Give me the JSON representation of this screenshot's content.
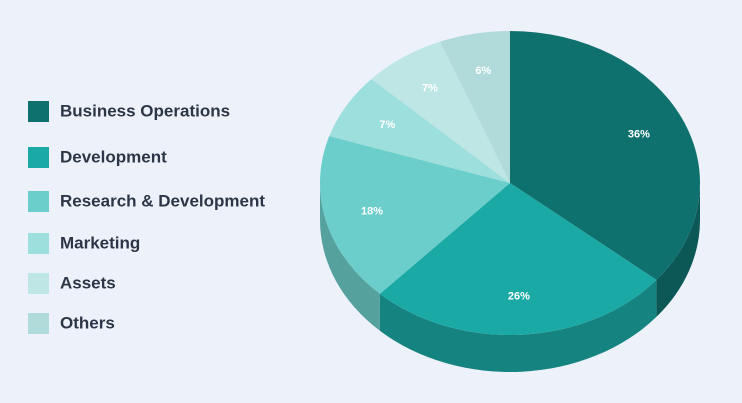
{
  "chart_data": {
    "type": "pie3d",
    "categories": [
      "Business Operations",
      "Development",
      "Research & Development",
      "Marketing",
      "Assets",
      "Others"
    ],
    "values": [
      36,
      26,
      18,
      7,
      7,
      6
    ],
    "value_labels": [
      "36%",
      "26%",
      "18%",
      "7%",
      "7%",
      "6%"
    ],
    "colors": [
      "#0f716e",
      "#1ba9a6",
      "#6ccecb",
      "#9ddfdd",
      "#bde6e5",
      "#b0dbda"
    ],
    "legend": "left"
  }
}
